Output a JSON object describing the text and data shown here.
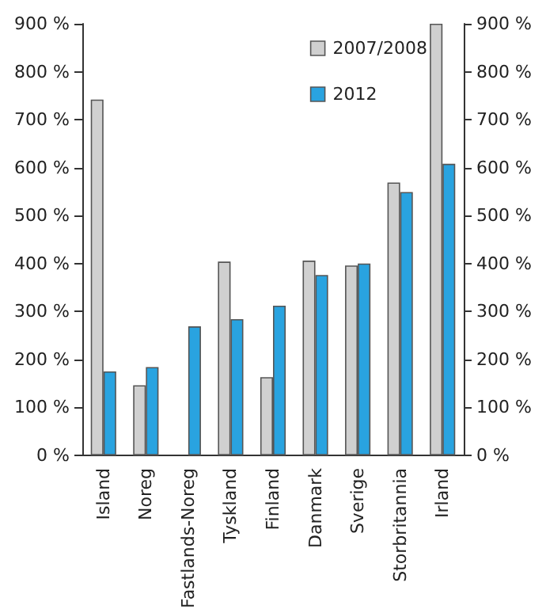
{
  "chart_data": {
    "type": "bar",
    "categories": [
      "Island",
      "Noreg",
      "Fastlands-Noreg",
      "Tyskland",
      "Finland",
      "Danmark",
      "Sverige",
      "Storbritannia",
      "Irland"
    ],
    "series": [
      {
        "name": "2007/2008",
        "color": "#d0d0d0",
        "values": [
          742,
          146,
          null,
          404,
          163,
          406,
          396,
          569,
          900
        ]
      },
      {
        "name": "2012",
        "color": "#29a3e0",
        "values": [
          175,
          184,
          269,
          284,
          312,
          376,
          400,
          549,
          608
        ]
      }
    ],
    "ylim": [
      0,
      900
    ],
    "yticks": [
      {
        "value": 0,
        "label": "0 %"
      },
      {
        "value": 100,
        "label": "100 %"
      },
      {
        "value": 200,
        "label": "200 %"
      },
      {
        "value": 300,
        "label": "300 %"
      },
      {
        "value": 400,
        "label": "400 %"
      },
      {
        "value": 500,
        "label": "500 %"
      },
      {
        "value": 600,
        "label": "600 %"
      },
      {
        "value": 700,
        "label": "700 %"
      },
      {
        "value": 800,
        "label": "800 %"
      },
      {
        "value": 900,
        "label": "900 %"
      }
    ],
    "y2lim": [
      0,
      900
    ],
    "y2ticks": [
      {
        "value": 0,
        "label": "0 %"
      },
      {
        "value": 100,
        "label": "100 %"
      },
      {
        "value": 200,
        "label": "200 %"
      },
      {
        "value": 300,
        "label": "300 %"
      },
      {
        "value": 400,
        "label": "400 %"
      },
      {
        "value": 500,
        "label": "500 %"
      },
      {
        "value": 600,
        "label": "600 %"
      },
      {
        "value": 700,
        "label": "700 %"
      },
      {
        "value": 800,
        "label": "800 %"
      },
      {
        "value": 900,
        "label": "900 %"
      }
    ],
    "grid": false,
    "legend": "top right"
  }
}
